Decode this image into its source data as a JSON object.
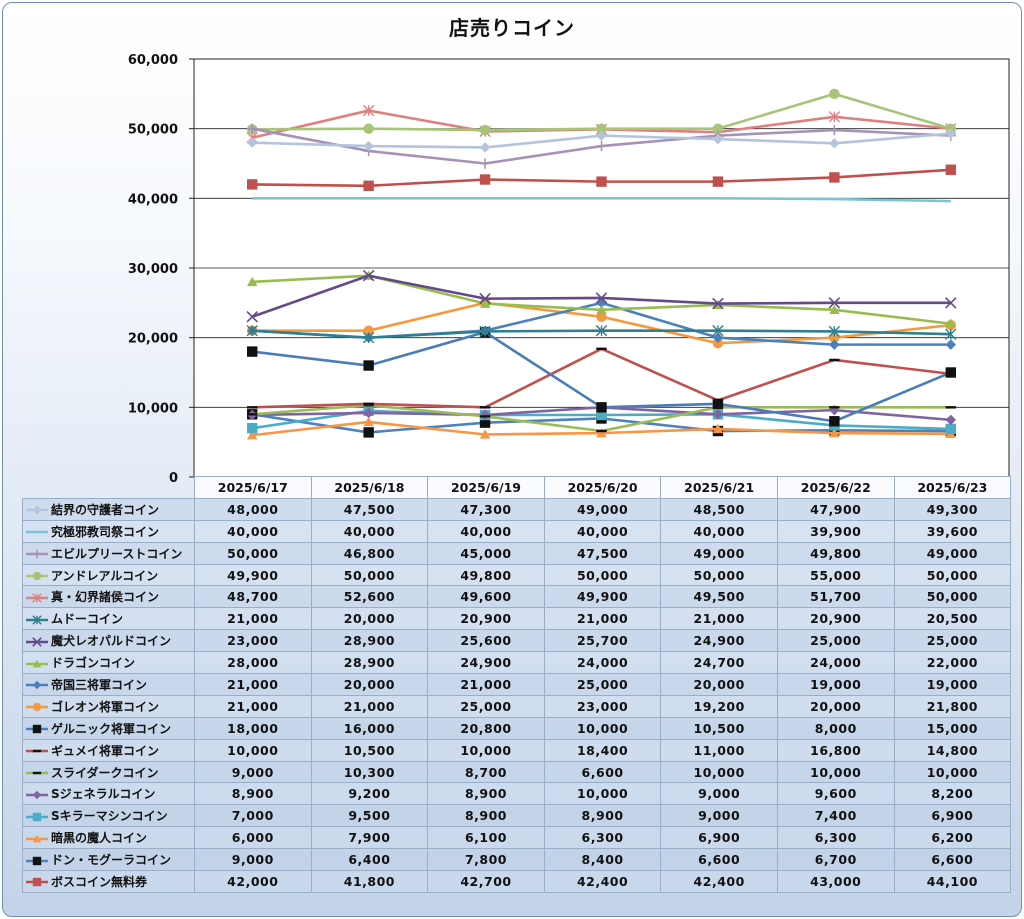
{
  "chart_data": {
    "type": "line",
    "title": "店売りコイン",
    "categories": [
      "2025/6/17",
      "2025/6/18",
      "2025/6/19",
      "2025/6/20",
      "2025/6/21",
      "2025/6/22",
      "2025/6/23"
    ],
    "ylim": [
      0,
      60000
    ],
    "yticks": [
      0,
      10000,
      20000,
      30000,
      40000,
      50000,
      60000
    ],
    "ytick_labels": [
      "0",
      "10,000",
      "20,000",
      "30,000",
      "40,000",
      "50,000",
      "60,000"
    ],
    "grid": true,
    "legend": "data-table",
    "series": [
      {
        "name": "結界の守護者コイン",
        "color": "#b4c4dc",
        "marker": "diamond",
        "values": [
          48000,
          47500,
          47300,
          49000,
          48500,
          47900,
          49300
        ],
        "labels": [
          "48,000",
          "47,500",
          "47,300",
          "49,000",
          "48,500",
          "47,900",
          "49,300"
        ]
      },
      {
        "name": "究極邪教司祭コイン",
        "color": "#7cc4d4",
        "marker": "none",
        "values": [
          40000,
          40000,
          40000,
          40000,
          40000,
          39900,
          39600
        ],
        "labels": [
          "40,000",
          "40,000",
          "40,000",
          "40,000",
          "40,000",
          "39,900",
          "39,600"
        ]
      },
      {
        "name": "エビルプリーストコイン",
        "color": "#a692b8",
        "marker": "plus",
        "values": [
          50000,
          46800,
          45000,
          47500,
          49000,
          49800,
          49000
        ],
        "labels": [
          "50,000",
          "46,800",
          "45,000",
          "47,500",
          "49,000",
          "49,800",
          "49,000"
        ]
      },
      {
        "name": "アンドレアルコイン",
        "color": "#a8c478",
        "marker": "circle",
        "values": [
          49900,
          50000,
          49800,
          50000,
          50000,
          55000,
          50000
        ],
        "labels": [
          "49,900",
          "50,000",
          "49,800",
          "50,000",
          "50,000",
          "55,000",
          "50,000"
        ]
      },
      {
        "name": "真・幻界諸侯コイン",
        "color": "#dd8080",
        "marker": "star",
        "values": [
          48700,
          52600,
          49600,
          49900,
          49500,
          51700,
          50000
        ],
        "labels": [
          "48,700",
          "52,600",
          "49,600",
          "49,900",
          "49,500",
          "51,700",
          "50,000"
        ]
      },
      {
        "name": "ムドーコイン",
        "color": "#2e7f90",
        "marker": "star",
        "values": [
          21000,
          20000,
          20900,
          21000,
          21000,
          20900,
          20500
        ],
        "labels": [
          "21,000",
          "20,000",
          "20,900",
          "21,000",
          "21,000",
          "20,900",
          "20,500"
        ]
      },
      {
        "name": "魔犬レオパルドコイン",
        "color": "#644a88",
        "marker": "x",
        "values": [
          23000,
          28900,
          25600,
          25700,
          24900,
          25000,
          25000
        ],
        "labels": [
          "23,000",
          "28,900",
          "25,600",
          "25,700",
          "24,900",
          "25,000",
          "25,000"
        ]
      },
      {
        "name": "ドラゴンコイン",
        "color": "#98bc50",
        "marker": "triangle",
        "values": [
          28000,
          28900,
          24900,
          24000,
          24700,
          24000,
          22000
        ],
        "labels": [
          "28,000",
          "28,900",
          "24,900",
          "24,000",
          "24,700",
          "24,000",
          "22,000"
        ]
      },
      {
        "name": "帝国三将軍コイン",
        "color": "#4a80bc",
        "marker": "diamond",
        "values": [
          21000,
          20000,
          21000,
          25000,
          20000,
          19000,
          19000
        ],
        "labels": [
          "21,000",
          "20,000",
          "21,000",
          "25,000",
          "20,000",
          "19,000",
          "19,000"
        ]
      },
      {
        "name": "ゴレオン将軍コイン",
        "color": "#f39a40",
        "marker": "circle",
        "values": [
          21000,
          21000,
          25000,
          23000,
          19200,
          20000,
          21800
        ],
        "labels": [
          "21,000",
          "21,000",
          "25,000",
          "23,000",
          "19,200",
          "20,000",
          "21,800"
        ]
      },
      {
        "name": "ゲルニック将軍コイン",
        "color": "#4a7cb8",
        "marker": "square",
        "values": [
          18000,
          16000,
          20800,
          10000,
          10500,
          8000,
          15000
        ],
        "labels": [
          "18,000",
          "16,000",
          "20,800",
          "10,000",
          "10,500",
          "8,000",
          "15,000"
        ]
      },
      {
        "name": "ギュメイ将軍コイン",
        "color": "#c0504d",
        "marker": "dash",
        "values": [
          10000,
          10500,
          10000,
          18400,
          11000,
          16800,
          14800
        ],
        "labels": [
          "10,000",
          "10,500",
          "10,000",
          "18,400",
          "11,000",
          "16,800",
          "14,800"
        ]
      },
      {
        "name": "スライダークコイン",
        "color": "#9bbb59",
        "marker": "dash",
        "values": [
          9000,
          10300,
          8700,
          6600,
          10000,
          10000,
          10000
        ],
        "labels": [
          "9,000",
          "10,300",
          "8,700",
          "6,600",
          "10,000",
          "10,000",
          "10,000"
        ]
      },
      {
        "name": "Sジェネラルコイン",
        "color": "#8064a2",
        "marker": "diamond",
        "values": [
          8900,
          9200,
          8900,
          10000,
          9000,
          9600,
          8200
        ],
        "labels": [
          "8,900",
          "9,200",
          "8,900",
          "10,000",
          "9,000",
          "9,600",
          "8,200"
        ]
      },
      {
        "name": "Sキラーマシンコイン",
        "color": "#4bacc6",
        "marker": "square",
        "values": [
          7000,
          9500,
          8900,
          8900,
          9000,
          7400,
          6900
        ],
        "labels": [
          "7,000",
          "9,500",
          "8,900",
          "8,900",
          "9,000",
          "7,400",
          "6,900"
        ]
      },
      {
        "name": "暗黒の魔人コイン",
        "color": "#f79646",
        "marker": "triangle",
        "values": [
          6000,
          7900,
          6100,
          6300,
          6900,
          6300,
          6200
        ],
        "labels": [
          "6,000",
          "7,900",
          "6,100",
          "6,300",
          "6,900",
          "6,300",
          "6,200"
        ]
      },
      {
        "name": "ドン・モグーラコイン",
        "color": "#4f81bd",
        "marker": "square",
        "values": [
          9000,
          6400,
          7800,
          8400,
          6600,
          6700,
          6600
        ],
        "labels": [
          "9,000",
          "6,400",
          "7,800",
          "8,400",
          "6,600",
          "6,700",
          "6,600"
        ]
      },
      {
        "name": "ボスコイン無料券",
        "color": "#c0504d",
        "marker": "square",
        "values": [
          42000,
          41800,
          42700,
          42400,
          42400,
          43000,
          44100
        ],
        "labels": [
          "42,000",
          "41,800",
          "42,700",
          "42,400",
          "42,400",
          "43,000",
          "44,100"
        ]
      }
    ]
  }
}
